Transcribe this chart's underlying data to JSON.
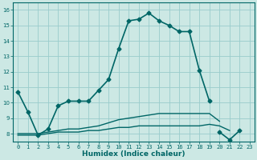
{
  "xlabel": "Humidex (Indice chaleur)",
  "background_color": "#cce8e4",
  "line_color": "#006666",
  "grid_color": "#99cccc",
  "xlim": [
    -0.5,
    23.5
  ],
  "ylim": [
    7.5,
    16.5
  ],
  "yticks": [
    8,
    9,
    10,
    11,
    12,
    13,
    14,
    15,
    16
  ],
  "xticks": [
    0,
    1,
    2,
    3,
    4,
    5,
    6,
    7,
    8,
    9,
    10,
    11,
    12,
    13,
    14,
    15,
    16,
    17,
    18,
    19,
    20,
    21,
    22,
    23
  ],
  "series": [
    {
      "x": [
        0,
        1,
        2,
        3,
        4,
        5,
        6,
        7,
        8,
        9,
        10,
        11,
        12,
        13,
        14,
        15,
        16,
        17,
        18,
        19
      ],
      "y": [
        10.7,
        9.4,
        7.9,
        8.3,
        9.8,
        10.1,
        10.1,
        10.1,
        10.8,
        11.5,
        13.5,
        15.3,
        15.4,
        15.8,
        15.3,
        15.0,
        14.6,
        14.6,
        12.1,
        10.1
      ],
      "marker": "D",
      "markersize": 2.5,
      "linewidth": 1.2
    },
    {
      "x": [
        20,
        21,
        22
      ],
      "y": [
        8.1,
        7.6,
        8.2
      ],
      "marker": "D",
      "markersize": 2.5,
      "linewidth": 1.2
    },
    {
      "x": [
        0,
        1,
        2,
        3,
        4,
        5,
        6,
        7,
        8,
        9,
        10,
        11,
        12,
        13,
        14,
        15,
        16,
        17,
        18,
        19,
        20,
        21
      ],
      "y": [
        7.9,
        7.9,
        7.9,
        8.0,
        8.1,
        8.1,
        8.1,
        8.2,
        8.2,
        8.3,
        8.4,
        8.4,
        8.5,
        8.5,
        8.5,
        8.5,
        8.5,
        8.5,
        8.5,
        8.6,
        8.5,
        8.2
      ],
      "marker": null,
      "markersize": 0,
      "linewidth": 1.0
    },
    {
      "x": [
        0,
        1,
        2,
        3,
        4,
        5,
        6,
        7,
        8,
        9,
        10,
        11,
        12,
        13,
        14,
        15,
        16,
        17,
        18,
        19,
        20
      ],
      "y": [
        8.0,
        8.0,
        8.0,
        8.1,
        8.2,
        8.3,
        8.3,
        8.4,
        8.5,
        8.7,
        8.9,
        9.0,
        9.1,
        9.2,
        9.3,
        9.3,
        9.3,
        9.3,
        9.3,
        9.3,
        8.8
      ],
      "marker": null,
      "markersize": 0,
      "linewidth": 1.0
    }
  ]
}
